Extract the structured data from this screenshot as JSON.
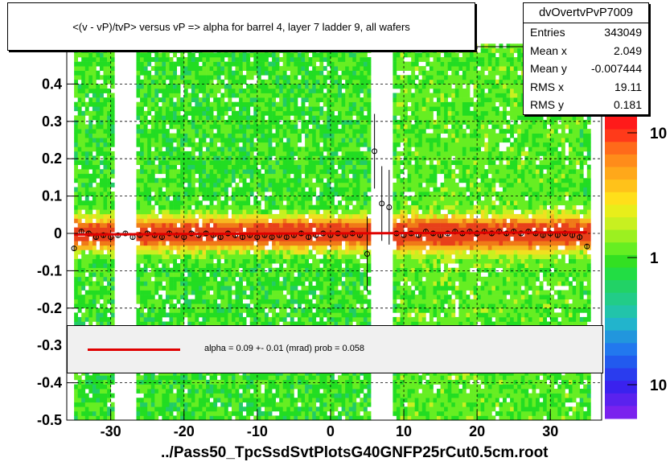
{
  "title": "<(v - vP)/tvP> versus   vP => alpha for barrel 4, layer 7 ladder 9, all wafers",
  "stats": {
    "name": "dvOvertvPvP7009",
    "rows": [
      {
        "label": "Entries",
        "value": "343049"
      },
      {
        "label": "Mean x",
        "value": "2.049"
      },
      {
        "label": "Mean y",
        "value": "-0.007444"
      },
      {
        "label": "RMS x",
        "value": "19.11"
      },
      {
        "label": "RMS y",
        "value": "0.181"
      }
    ]
  },
  "fit": {
    "text": "alpha =    0.09 +-  0.01 (mrad) prob = 0.058",
    "line_color": "#e00000"
  },
  "xtitle": "../Pass50_TpcSsdSvtPlotsG40GNFP25rCut0.5cm.root",
  "colors": {
    "frame": "#000000",
    "fit_line": "#e00000",
    "profile_marker": "#000000",
    "alt_marker": "#cc00cc"
  },
  "chart_data": {
    "type": "heatmap",
    "xlim": [
      -36,
      37
    ],
    "ylim": [
      -0.5,
      0.5
    ],
    "x_ticks": [
      -30,
      -20,
      -10,
      0,
      10,
      20,
      30
    ],
    "y_ticks": [
      -0.5,
      -0.4,
      -0.3,
      -0.2,
      -0.1,
      0,
      0.1,
      0.2,
      0.3,
      0.4
    ],
    "x_tick_labels": [
      "-30",
      "-20",
      "-10",
      "0",
      "10",
      "20",
      "30"
    ],
    "y_tick_labels": [
      "-0.5",
      "-0.4",
      "-0.3",
      "-0.2",
      "-0.1",
      "0",
      "0.1",
      "0.2",
      "0.3",
      "0.4"
    ],
    "grid": true,
    "empty_x_bands": [
      [
        -29.5,
        -26.5
      ],
      [
        5.5,
        8.5
      ]
    ],
    "color_scale": {
      "type": "log",
      "tick_labels": [
        "10",
        "1",
        "10"
      ]
    },
    "profile": {
      "x": [
        -35,
        -34,
        -33,
        -32,
        -31,
        -30,
        -29,
        -28,
        -27,
        -26,
        -25,
        -24,
        -23,
        -22,
        -21,
        -20,
        -19,
        -18,
        -17,
        -16,
        -15,
        -14,
        -13,
        -12,
        -11,
        -10,
        -9,
        -8,
        -7,
        -6,
        -5,
        -4,
        -3,
        -2,
        -1,
        0,
        1,
        2,
        3,
        4,
        5,
        6,
        7,
        8,
        9,
        10,
        11,
        12,
        13,
        14,
        15,
        16,
        17,
        18,
        19,
        20,
        21,
        22,
        23,
        24,
        25,
        26,
        27,
        28,
        29,
        30,
        31,
        32,
        33,
        34,
        35
      ],
      "y": [
        -0.04,
        0.005,
        0.0,
        -0.01,
        -0.005,
        -0.01,
        -0.005,
        0.0,
        -0.01,
        -0.005,
        0.0,
        -0.005,
        -0.01,
        0.0,
        -0.005,
        -0.01,
        0.0,
        -0.005,
        0.0,
        -0.005,
        -0.01,
        0.0,
        -0.005,
        -0.01,
        -0.005,
        -0.01,
        -0.005,
        -0.01,
        -0.005,
        -0.01,
        -0.005,
        0.0,
        -0.01,
        -0.005,
        0.0,
        -0.005,
        0.0,
        -0.005,
        0.0,
        -0.005,
        -0.055,
        0.22,
        0.08,
        0.07,
        0.0,
        -0.005,
        0.0,
        -0.005,
        0.005,
        0.0,
        -0.005,
        0.0,
        0.005,
        0.0,
        0.005,
        0.0,
        0.005,
        0.0,
        0.005,
        0.0,
        0.005,
        0.0,
        0.005,
        0.0,
        -0.005,
        0.0,
        -0.005,
        0.0,
        -0.005,
        -0.01,
        -0.035
      ]
    },
    "fit_line": {
      "x": [
        -35,
        35
      ],
      "y": [
        -0.003,
        0.003
      ]
    }
  }
}
